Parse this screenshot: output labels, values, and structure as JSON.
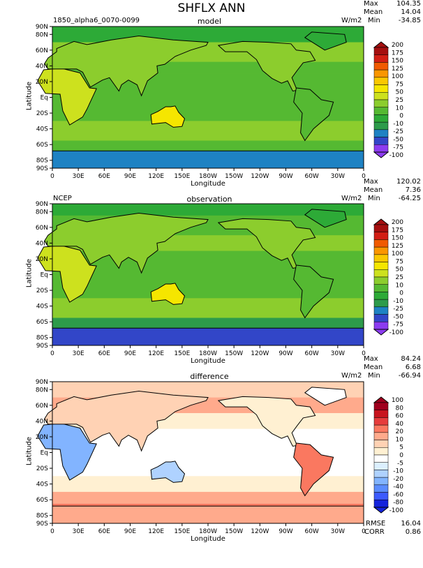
{
  "figure": {
    "title": "SHFLX ANN"
  },
  "colors": {
    "full_scale": [
      "#8c3cf0",
      "#3246c8",
      "#1e82c3",
      "#2d9b4b",
      "#2daa37",
      "#55b932",
      "#8ccd2d",
      "#cde11e",
      "#f5e600",
      "#fac800",
      "#fa9600",
      "#f05a00",
      "#d21e14",
      "#a50f0f"
    ],
    "diff_scale": [
      "#1423dc",
      "#3c5aff",
      "#5a8cff",
      "#82b4ff",
      "#afd2ff",
      "#dcf0ff",
      "#ffffff",
      "#fff0d2",
      "#ffd2b4",
      "#ffaa8c",
      "#fa7860",
      "#e63c3c",
      "#c8141e",
      "#a0001e"
    ],
    "land_outline": "#000000"
  },
  "chart_data": [
    {
      "type": "heatmap",
      "id": "model",
      "left_title": "1850_alpha6_0070-0099",
      "center_title": "model",
      "units": "W/m2",
      "stats": {
        "max_label": "Max",
        "max": "104.35",
        "mean_label": "Mean",
        "mean": "14.04",
        "min_label": "Min",
        "min": "-34.85"
      },
      "xlabel": "Longitude",
      "ylabel": "Latitude",
      "xticks": [
        "0",
        "30E",
        "60E",
        "90E",
        "120E",
        "150E",
        "180W",
        "150W",
        "120W",
        "90W",
        "60W",
        "30W",
        "0"
      ],
      "yticks": [
        "90N",
        "80N",
        "60N",
        "40N",
        "20N",
        "Eq",
        "20S",
        "40S",
        "60S",
        "80S",
        "90S"
      ],
      "colorbar_levels": [
        "200",
        "175",
        "150",
        "125",
        "100",
        "75",
        "50",
        "25",
        "10",
        "0",
        "-10",
        "-25",
        "-50",
        "-75",
        "-100"
      ],
      "scale": "full_scale"
    },
    {
      "type": "heatmap",
      "id": "observation",
      "left_title": "NCEP",
      "center_title": "observation",
      "units": "W/m2",
      "stats": {
        "max_label": "Max",
        "max": "120.02",
        "mean_label": "Mean",
        "mean": "7.36",
        "min_label": "Min",
        "min": "-64.25"
      },
      "xlabel": "Longitude",
      "ylabel": "Latitude",
      "xticks": [
        "0",
        "30E",
        "60E",
        "90E",
        "120E",
        "150E",
        "180W",
        "150W",
        "120W",
        "90W",
        "60W",
        "30W",
        "0"
      ],
      "yticks": [
        "90N",
        "80N",
        "60N",
        "40N",
        "20N",
        "Eq",
        "20S",
        "40S",
        "60S",
        "80S",
        "90S"
      ],
      "colorbar_levels": [
        "200",
        "175",
        "150",
        "125",
        "100",
        "75",
        "50",
        "25",
        "10",
        "0",
        "-10",
        "-25",
        "-50",
        "-75",
        "-100"
      ],
      "scale": "full_scale"
    },
    {
      "type": "heatmap",
      "id": "difference",
      "left_title": "",
      "center_title": "difference",
      "units": "W/m2",
      "stats": {
        "max_label": "Max",
        "max": "84.24",
        "mean_label": "Mean",
        "mean": "6.68",
        "min_label": "Min",
        "min": "-66.94"
      },
      "extra_stats": {
        "rmse_label": "RMSE",
        "rmse": "16.04",
        "corr_label": "CORR",
        "corr": "0.86"
      },
      "xlabel": "Longitude",
      "ylabel": "Latitude",
      "xticks": [
        "0",
        "30E",
        "60E",
        "90E",
        "120E",
        "150E",
        "180W",
        "150W",
        "120W",
        "90W",
        "60W",
        "30W",
        "0"
      ],
      "yticks": [
        "90N",
        "80N",
        "60N",
        "40N",
        "20N",
        "Eq",
        "20S",
        "40S",
        "60S",
        "80S",
        "90S"
      ],
      "colorbar_levels": [
        "100",
        "80",
        "60",
        "40",
        "20",
        "10",
        "5",
        "0",
        "-5",
        "-10",
        "-20",
        "-40",
        "-60",
        "-80",
        "-100"
      ],
      "scale": "diff_scale"
    }
  ]
}
